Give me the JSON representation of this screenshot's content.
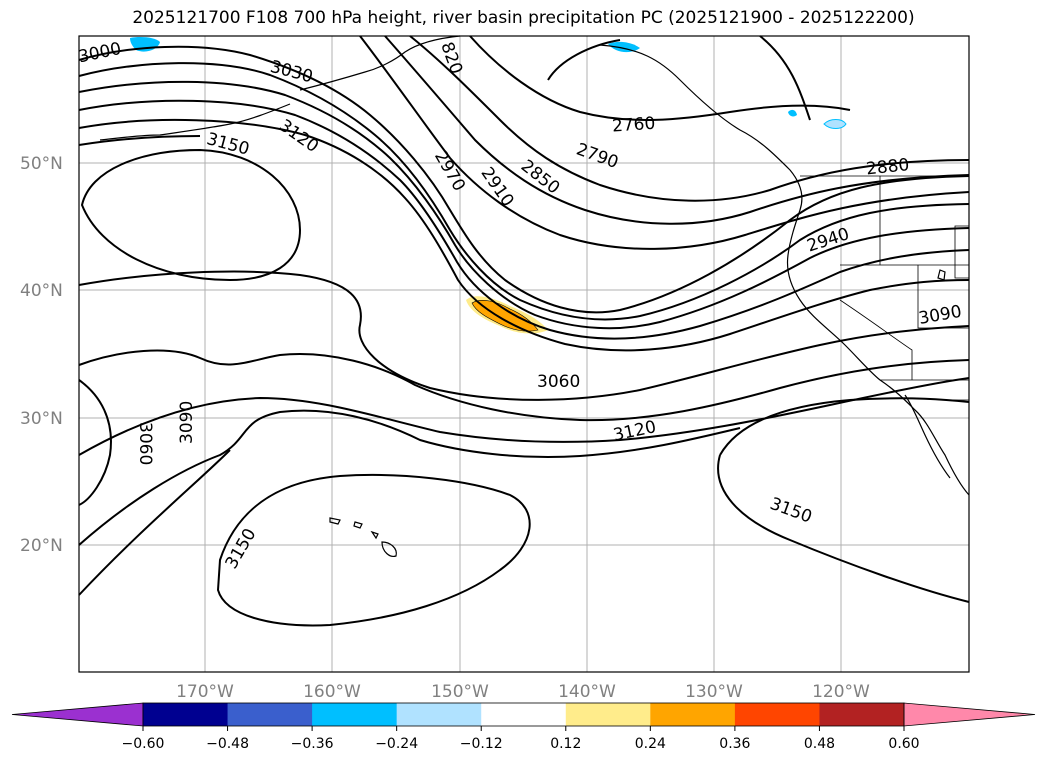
{
  "title": "2025121700 F108 700 hPa height, river basin precipitation PC (2025121900 - 2025122200)",
  "lat_labels": [
    "50°N",
    "40°N",
    "30°N",
    "20°N"
  ],
  "lon_labels": [
    "170°W",
    "160°W",
    "150°W",
    "140°W",
    "130°W",
    "120°W"
  ],
  "contour_labels": [
    "3000",
    "3030",
    "820",
    "2760",
    "2790",
    "2850",
    "2880",
    "2910",
    "2970",
    "3120",
    "3150",
    "2940",
    "3090",
    "3060",
    "3120",
    "3060",
    "3090",
    "3150",
    "3150"
  ],
  "colorbar": {
    "ticks": [
      "−0.60",
      "−0.48",
      "−0.36",
      "−0.24",
      "−0.12",
      "0.12",
      "0.24",
      "0.36",
      "0.48",
      "0.60"
    ],
    "colors": [
      "#9b30d0",
      "#000090",
      "#3a5fcd",
      "#00bfff",
      "#b0e2ff",
      "#ffffff",
      "#ffec8b",
      "#ffa500",
      "#ff4500",
      "#b22222",
      "#ff88aa"
    ]
  }
}
